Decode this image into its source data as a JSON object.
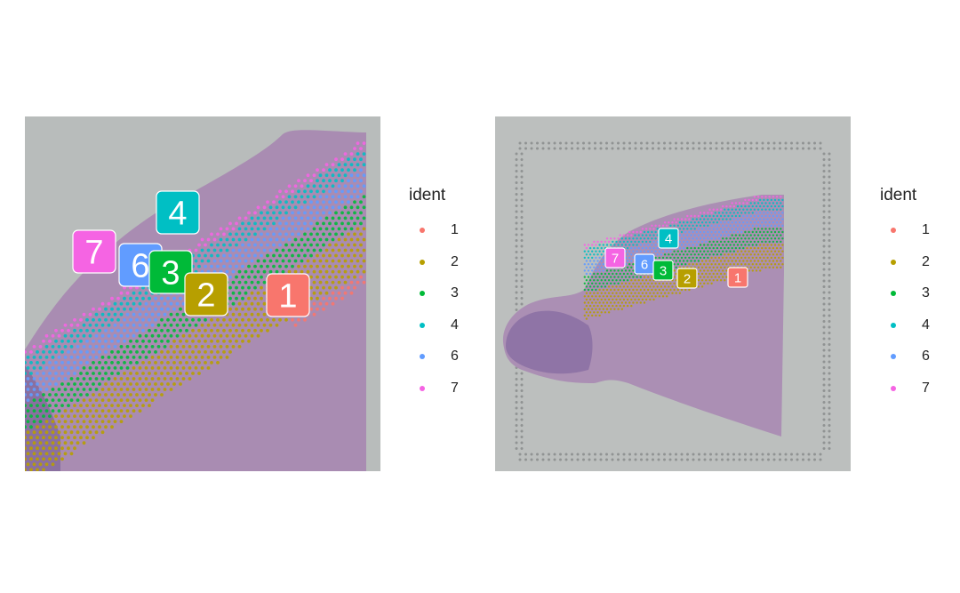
{
  "chart_data": [
    {
      "type": "scatter",
      "title": "",
      "xlabel": "",
      "ylabel": "",
      "grid": false,
      "legend_position": "right",
      "legend_title": "ident",
      "series": [
        {
          "name": "1",
          "color": "#F8766D"
        },
        {
          "name": "2",
          "color": "#B79F00"
        },
        {
          "name": "3",
          "color": "#00BA38"
        },
        {
          "name": "4",
          "color": "#00BFC4"
        },
        {
          "name": "6",
          "color": "#619CFF"
        },
        {
          "name": "7",
          "color": "#F564E3"
        }
      ],
      "cluster_labels": [
        "1",
        "2",
        "3",
        "4",
        "6",
        "7"
      ],
      "view": "zoomed"
    },
    {
      "type": "scatter",
      "title": "",
      "xlabel": "",
      "ylabel": "",
      "grid": false,
      "legend_position": "right",
      "legend_title": "ident",
      "series": [
        {
          "name": "1",
          "color": "#F8766D"
        },
        {
          "name": "2",
          "color": "#B79F00"
        },
        {
          "name": "3",
          "color": "#00BA38"
        },
        {
          "name": "4",
          "color": "#00BFC4"
        },
        {
          "name": "6",
          "color": "#619CFF"
        },
        {
          "name": "7",
          "color": "#F564E3"
        }
      ],
      "cluster_labels": [
        "1",
        "2",
        "3",
        "4",
        "6",
        "7"
      ],
      "view": "full"
    }
  ]
}
